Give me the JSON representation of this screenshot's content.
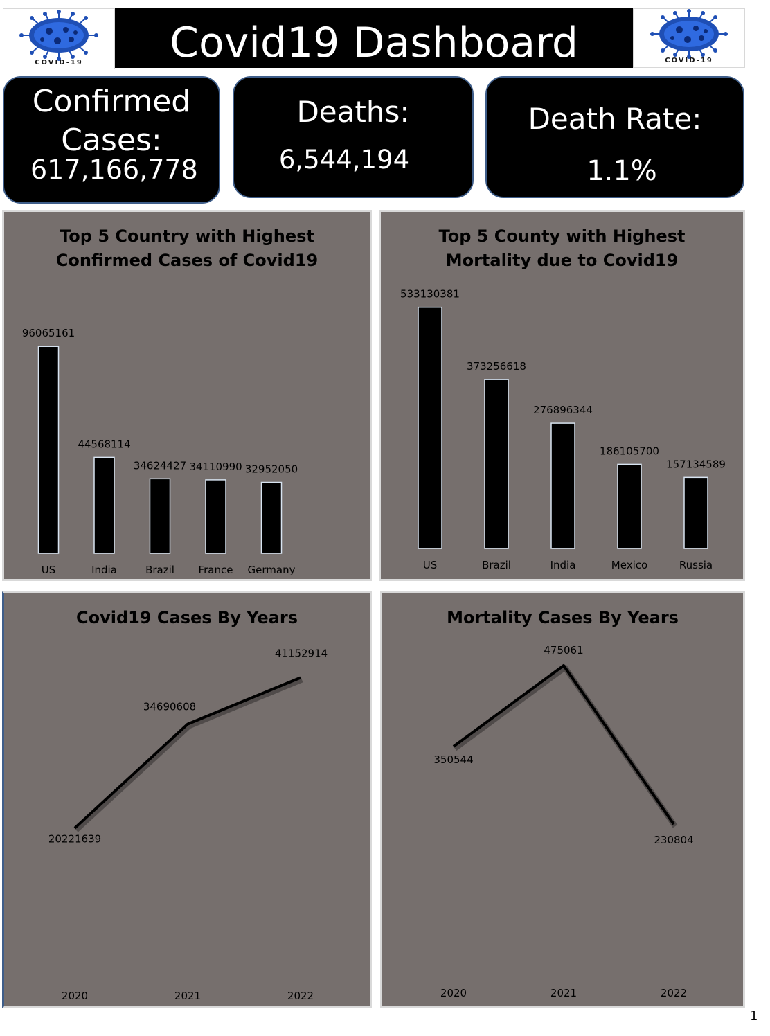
{
  "header": {
    "title": "Covid19 Dashboard",
    "logo_left_caption": "COVID-19",
    "logo_right_caption": "COVID-19"
  },
  "kpis": {
    "confirmed": {
      "label_line1": "Confirmed",
      "label_line2": "Cases:",
      "value": "617,166,778"
    },
    "deaths": {
      "label": "Deaths:",
      "value": "6,544,194"
    },
    "death_rate": {
      "label": "Death Rate:",
      "value": "1.1%"
    }
  },
  "chart_data": [
    {
      "type": "bar",
      "title": "Top 5 Country with Highest Confirmed Cases of Covid19",
      "title_lines": [
        "Top 5 Country with Highest",
        "Confirmed Cases of Covid19"
      ],
      "categories": [
        "US",
        "India",
        "Brazil",
        "France",
        "Germany"
      ],
      "values": [
        96065161,
        44568114,
        34624427,
        34110990,
        32952050
      ],
      "ylim": [
        0,
        100000000
      ]
    },
    {
      "type": "bar",
      "title": "Top 5 County with Highest Mortality due to Covid19",
      "title_lines": [
        "Top 5 County with Highest",
        "Mortality due to Covid19"
      ],
      "categories": [
        "US",
        "Brazil",
        "India",
        "Mexico",
        "Russia"
      ],
      "values": [
        533130381,
        373256618,
        276896344,
        186105700,
        157134589
      ],
      "ylim": [
        0,
        600000000
      ]
    },
    {
      "type": "line",
      "title": "Covid19 Cases By Years",
      "title_lines": [
        "Covid19 Cases By Years"
      ],
      "categories": [
        "2020",
        "2021",
        "2022"
      ],
      "values": [
        20221639,
        34690608,
        41152914
      ]
    },
    {
      "type": "line",
      "title": "Mortality Cases By Years",
      "title_lines": [
        "Mortality Cases By Years"
      ],
      "categories": [
        "2020",
        "2021",
        "2022"
      ],
      "values": [
        350544,
        475061,
        230804
      ]
    }
  ],
  "page_number": "1",
  "colors": {
    "panel_bg": "#766f6d",
    "bar_fill": "#000000",
    "kpi_bg": "#000000",
    "kpi_border": "#3f5e8a",
    "virus_blue": "#1f4fb5"
  },
  "icons": [
    "coronavirus-icon"
  ]
}
